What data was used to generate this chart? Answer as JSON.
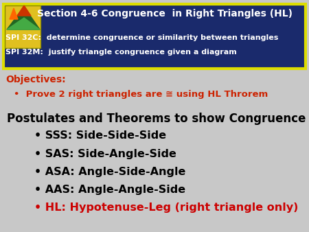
{
  "bg_color": "#c8c8c8",
  "header_bg": "#1a2a6c",
  "header_border": "#dddd00",
  "header_title": "Section 4-6 Congruence  in Right Triangles (HL)",
  "header_spi1": "SPI 32C:  determine congruence or similarity between triangles",
  "header_spi2": "SPI 32M:  justify triangle congruence given a diagram",
  "objectives_label": "Objectives:",
  "objectives_bullet": "•  Prove 2 right triangles are ≅ using HL Throrem",
  "main_title": "Postulates and Theorems to show Congruence",
  "bullets": [
    {
      "text": "• SSS: Side-Side-Side",
      "color": "#000000"
    },
    {
      "text": "• SAS: Side-Angle-Side",
      "color": "#000000"
    },
    {
      "text": "• ASA: Angle-Side-Angle",
      "color": "#000000"
    },
    {
      "text": "• AAS: Angle-Angle-Side",
      "color": "#000000"
    },
    {
      "text": "• HL: Hypotenuse-Leg (right triangle only)",
      "color": "#cc0000"
    }
  ],
  "objectives_color": "#cc2200",
  "objectives_bullet_color": "#cc2200",
  "header_title_color": "#ffffff",
  "header_spi_color": "#ffffff",
  "main_title_color": "#000000",
  "fig_width": 4.5,
  "fig_height": 3.38,
  "dpi": 100
}
